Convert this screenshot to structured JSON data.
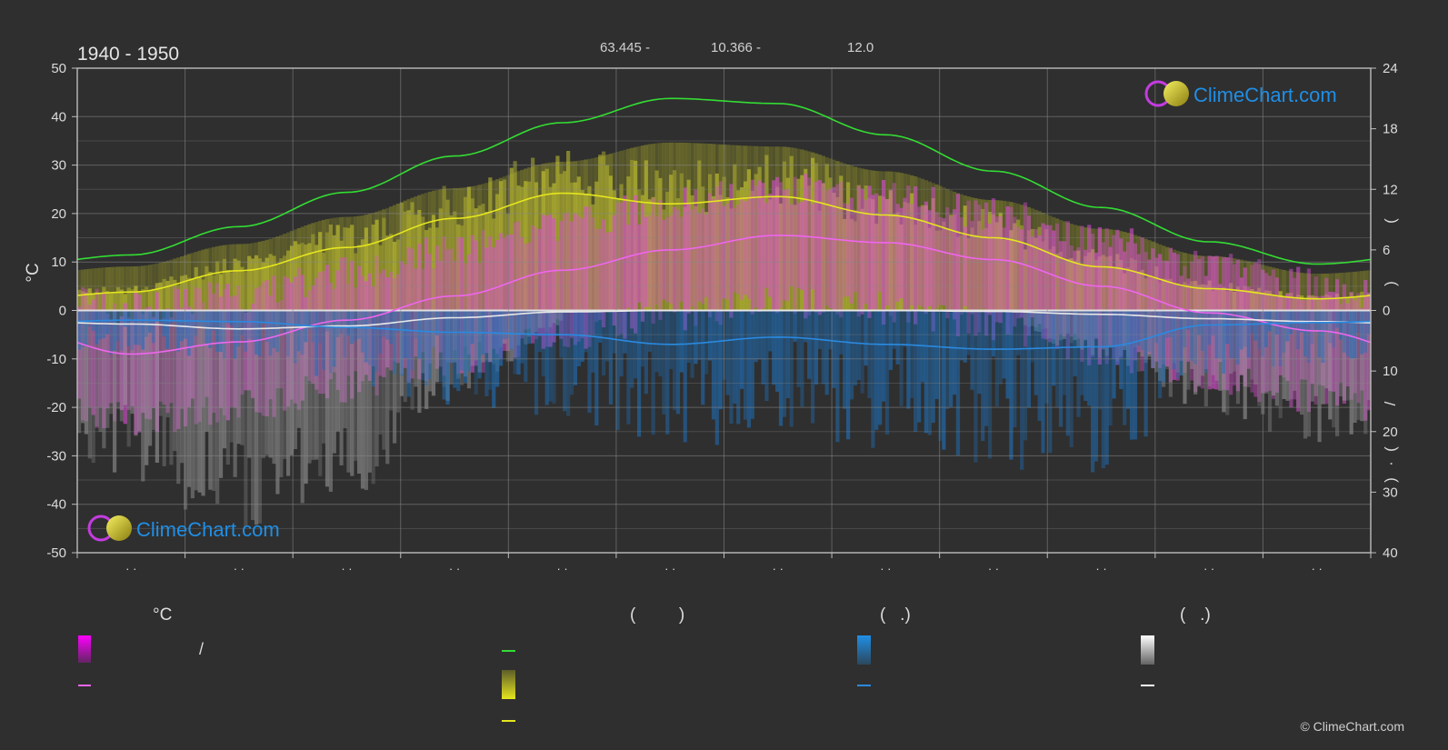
{
  "chart_data": {
    "type": "area",
    "title": "1940 - 1950",
    "header_values": [
      "63.445 -",
      "10.366 -",
      "12.0"
    ],
    "y_left": {
      "label": "°C",
      "min": -50,
      "max": 50,
      "ticks": [
        50,
        40,
        30,
        20,
        10,
        0,
        -10,
        -20,
        -30,
        -40,
        -50
      ]
    },
    "y_right_top": {
      "min": 0,
      "max": 24,
      "ticks": [
        24,
        18,
        12,
        6,
        0
      ],
      "label_fragments": [
        "(",
        ")"
      ]
    },
    "y_right_bottom": {
      "min": 0,
      "max": 40,
      "ticks": [
        0,
        10,
        20,
        30,
        40
      ],
      "label_fragments": [
        "/",
        "(",
        "·",
        ")"
      ]
    },
    "x_ticks": [
      "· ·",
      "· ·",
      "· ·",
      "· ·",
      "· ·",
      "· ·",
      "· ·",
      "· ·",
      "· ·",
      "· ·",
      "· ·",
      "· ·"
    ],
    "x_month_index": [
      1,
      2,
      3,
      4,
      5,
      6,
      7,
      8,
      9,
      10,
      11,
      12
    ],
    "series": [
      {
        "key": "daylight",
        "color": "#33dd33",
        "axis": "right_top",
        "values": [
          5.5,
          8.3,
          11.7,
          15.3,
          18.6,
          21.0,
          20.5,
          17.4,
          13.8,
          10.2,
          6.8,
          4.6
        ]
      },
      {
        "key": "sunshine",
        "color": "#e6e61e",
        "axis": "left",
        "values": [
          3.8,
          8.2,
          13.0,
          19.0,
          24.2,
          22.0,
          23.5,
          19.7,
          15.0,
          9.0,
          4.5,
          2.4
        ]
      },
      {
        "key": "temp_mean",
        "color": "#ee66ee",
        "axis": "left",
        "values": [
          -9.0,
          -6.5,
          -2.0,
          3.0,
          8.3,
          12.5,
          15.5,
          14.0,
          10.5,
          5.0,
          -0.5,
          -4.2
        ]
      },
      {
        "key": "snow",
        "color": "#e8e8e8",
        "axis": "left",
        "values": [
          -2.8,
          -3.8,
          -3.2,
          -1.5,
          -0.3,
          0.0,
          0.0,
          0.0,
          -0.2,
          -0.8,
          -1.7,
          -2.3
        ]
      },
      {
        "key": "precipitation",
        "color": "#2a8ae0",
        "axis": "left",
        "values": [
          -2.0,
          -2.3,
          -3.5,
          -4.5,
          -5.0,
          -7.0,
          -5.5,
          -7.0,
          -8.0,
          -7.5,
          -3.0,
          -2.5
        ]
      }
    ],
    "grid": true,
    "legend": "bottom"
  },
  "watermark": {
    "text": "ClimeChart.com",
    "color": "#1f8fe6"
  },
  "legend": {
    "headers": [
      "°C",
      "(         )",
      "(   .)",
      "(   .)"
    ],
    "slash": "/",
    "colors": {
      "temp_range": "#ff00ff",
      "temp_mean": "#ee66ee",
      "daylight": "#33dd33",
      "sunshine_band": "#e6e61e",
      "sunshine": "#e6e61e",
      "precip_band": "#1f8fe6",
      "precip": "#2a8ae0",
      "snow_band": "#ffffff",
      "snow": "#ffffff"
    }
  },
  "copyright": "© ClimeChart.com"
}
